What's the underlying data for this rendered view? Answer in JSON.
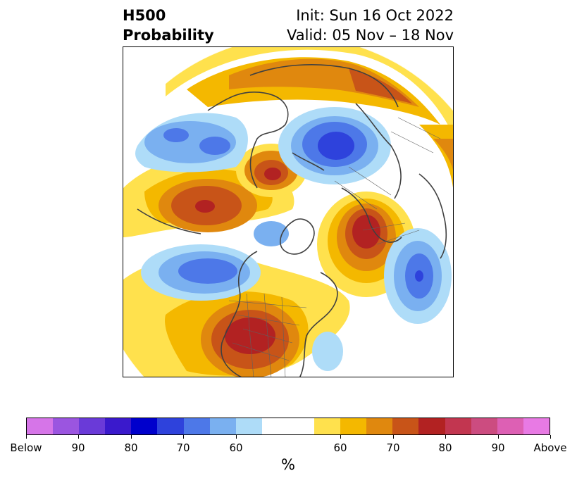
{
  "header": {
    "title_line1": "H500",
    "title_line2": "Probability",
    "init": "Init: Sun 16 Oct 2022",
    "valid": "Valid: 05 Nov – 18 Nov"
  },
  "colorbar": {
    "colors": [
      "#d675e8",
      "#9b55e0",
      "#6a3ad8",
      "#3a19cc",
      "#0000cc",
      "#2e42dc",
      "#4d78e8",
      "#7ab0f0",
      "#aedcf8",
      "#ffffff",
      "#ffffff",
      "#ffe14d",
      "#f4b800",
      "#e0880e",
      "#c85418",
      "#b22222",
      "#c23650",
      "#cc4c80",
      "#dd60b4",
      "#e87ae4"
    ],
    "tick_labels": [
      "Below",
      "90",
      "80",
      "70",
      "60",
      "60",
      "70",
      "80",
      "90",
      "Above"
    ],
    "label": "%"
  },
  "palette": {
    "above_60": "#ffe14d",
    "above_65": "#f4b800",
    "above_70": "#e0880e",
    "above_75": "#c85418",
    "above_80": "#b22222",
    "below_60": "#aedcf8",
    "below_65": "#7ab0f0",
    "below_70": "#4d78e8",
    "below_75": "#2e42dc",
    "coast": "#404040"
  }
}
